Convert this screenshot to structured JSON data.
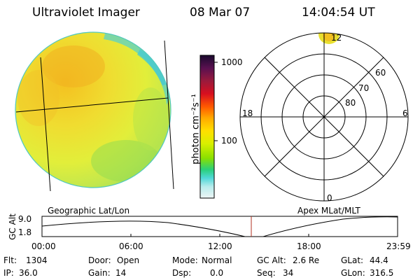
{
  "header": {
    "instrument": "Ultraviolet Imager",
    "date": "08 Mar 07",
    "time": "14:04:54 UT"
  },
  "colorbar": {
    "unit_label": "photon cm⁻²s⁻¹",
    "ticks": [
      "1000",
      "100"
    ],
    "tick_values": [
      1000,
      100
    ],
    "scale": "log",
    "colors": [
      "#1a0a2e",
      "#5a1050",
      "#9a1a3c",
      "#d80f1f",
      "#ff5a00",
      "#ffaa00",
      "#ffe000",
      "#d8f000",
      "#8ae000",
      "#2ad07a",
      "#50d8d8",
      "#b8ecec",
      "#eef6f6"
    ]
  },
  "image_panel": {
    "title": "Geographic Lat/Lon"
  },
  "polar_panel": {
    "title": "Apex MLat/MLT",
    "mlt_labels": {
      "top": "12",
      "left": "18",
      "right": "6",
      "bottom": "0"
    },
    "lat_labels": [
      "60",
      "70",
      "80"
    ]
  },
  "altitude_plot": {
    "ylabel": "GC Alt",
    "yticks": [
      "9.0",
      "1.8"
    ],
    "xticks": [
      "00:00",
      "06:00",
      "12:00",
      "18:00",
      "23:59"
    ],
    "current_time_marker": "14:04"
  },
  "status": {
    "row1": [
      {
        "key": "Flt:",
        "value": "1304"
      },
      {
        "key": "Door:",
        "value": "Open"
      },
      {
        "key": "Mode:",
        "value": "Normal"
      },
      {
        "key": "GC Alt:",
        "value": "2.6 Re"
      },
      {
        "key": "GLat:",
        "value": "44.4"
      }
    ],
    "row2": [
      {
        "key": "IP:",
        "value": "36.0"
      },
      {
        "key": "Gain:",
        "value": "14"
      },
      {
        "key": "Dsp:",
        "value": "0.0"
      },
      {
        "key": "Seq:",
        "value": "34"
      },
      {
        "key": "GLon:",
        "value": "316.5"
      }
    ]
  }
}
